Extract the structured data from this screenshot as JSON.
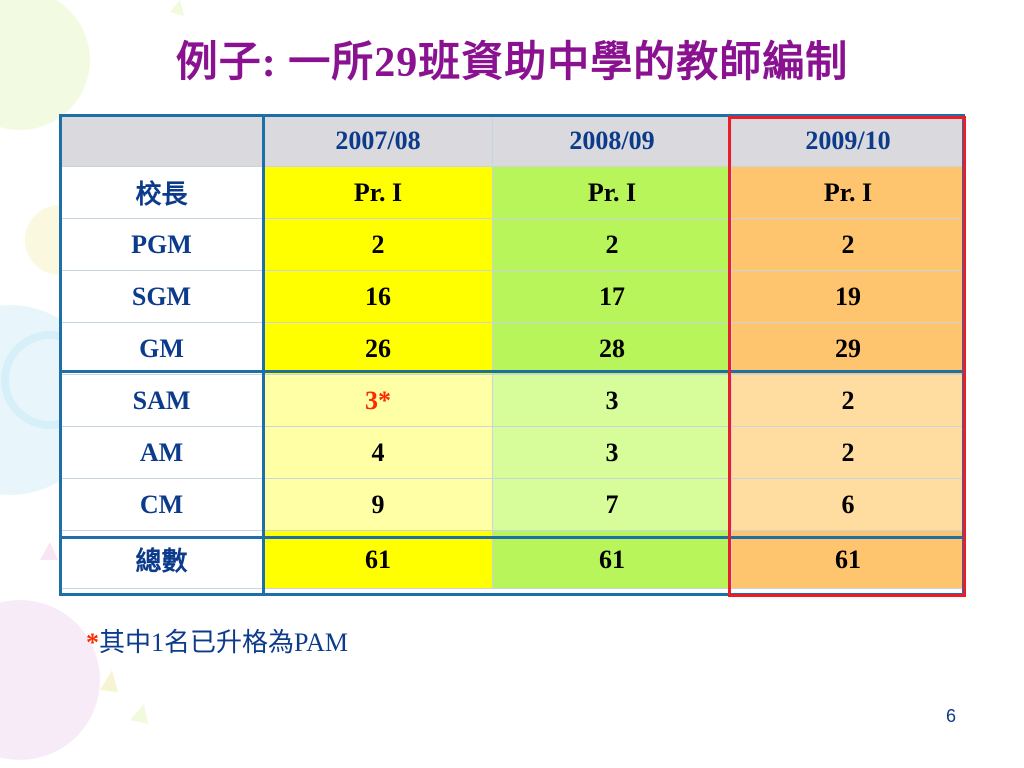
{
  "title": "例子: 一所29班資助中學的教師編制",
  "table": {
    "headers": [
      "",
      "2007/08",
      "2008/09",
      "2009/10"
    ],
    "rows": [
      {
        "label": "校長",
        "values": [
          "Pr. I",
          "Pr. I",
          "Pr. I"
        ]
      },
      {
        "label": "PGM",
        "values": [
          "2",
          "2",
          "2"
        ]
      },
      {
        "label": "SGM",
        "values": [
          "16",
          "17",
          "19"
        ]
      },
      {
        "label": "GM",
        "values": [
          "26",
          "28",
          "29"
        ]
      },
      {
        "label": "SAM",
        "values": [
          "3*",
          "3",
          "2"
        ]
      },
      {
        "label": "AM",
        "values": [
          "4",
          "3",
          "2"
        ]
      },
      {
        "label": "CM",
        "values": [
          "9",
          "7",
          "6"
        ]
      },
      {
        "label": "總數",
        "values": [
          "61",
          "61",
          "61"
        ]
      }
    ]
  },
  "footnote": {
    "marker": "*",
    "text": "其中1名已升格為PAM"
  },
  "page_number": "6",
  "colors": {
    "title": "#8a1290",
    "text_blue": "#0d3b8c",
    "col_2007": "#ffff00",
    "col_2008": "#b8f55a",
    "col_2009": "#ffc56e",
    "highlight_border": "#ee1c24",
    "table_border": "#1e6fa8"
  }
}
